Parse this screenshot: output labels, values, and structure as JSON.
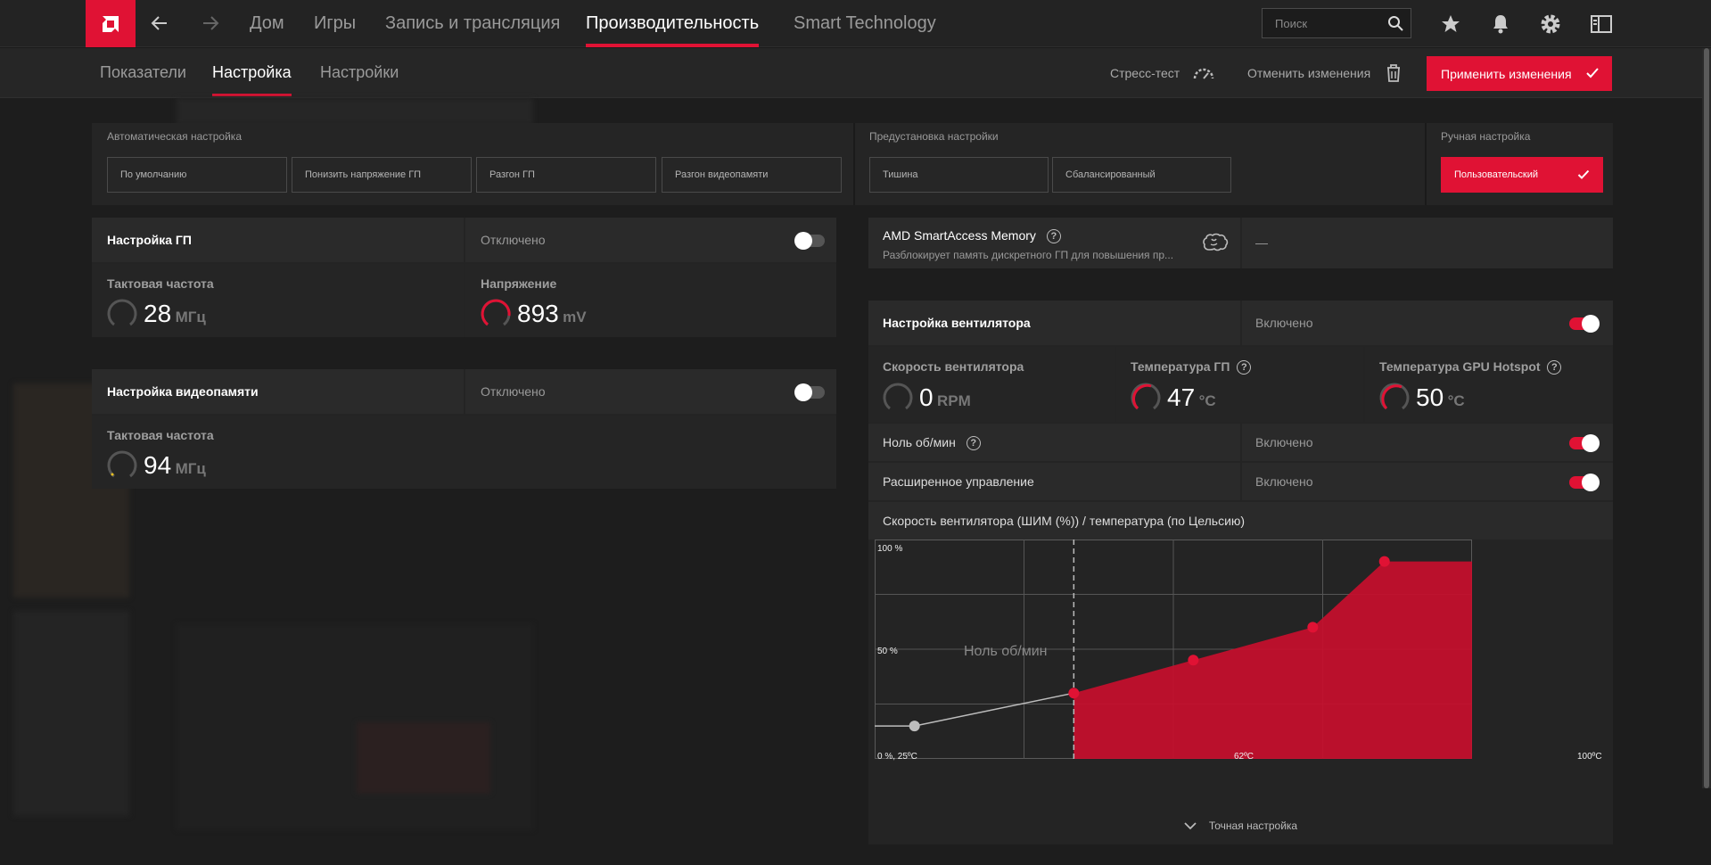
{
  "top_nav": {
    "items": [
      "Дом",
      "Игры",
      "Запись и трансляция",
      "Производительность",
      "Smart Technology"
    ],
    "active": "Производительность",
    "search_placeholder": "Поиск"
  },
  "sub_nav": {
    "tabs": [
      "Показатели",
      "Настройка",
      "Настройки"
    ],
    "active": "Настройка",
    "stress_test": "Стресс-тест",
    "cancel_changes": "Отменить изменения",
    "apply_changes": "Применить изменения"
  },
  "presets": {
    "auto_label": "Автоматическая настройка",
    "auto": [
      "По умолчанию",
      "Понизить напряжение ГП",
      "Разгон ГП",
      "Разгон видеопамяти"
    ],
    "preset_label": "Предустановка настройки",
    "preset": [
      "Тишина",
      "Сбалансированный"
    ],
    "manual_label": "Ручная настройка",
    "manual": "Пользовательский"
  },
  "gpu_tuning": {
    "title": "Настройка ГП",
    "state": "Отключено",
    "enabled": false,
    "clock_label": "Тактовая частота",
    "clock_value": "28",
    "clock_unit": "МГц",
    "voltage_label": "Напряжение",
    "voltage_value": "893",
    "voltage_unit": "mV"
  },
  "vram_tuning": {
    "title": "Настройка видеопамяти",
    "state": "Отключено",
    "enabled": false,
    "clock_label": "Тактовая частота",
    "clock_value": "94",
    "clock_unit": "МГц"
  },
  "sam": {
    "title": "AMD SmartAccess Memory",
    "description": "Разблокирует память дискретного ГП для повышения пр...",
    "value": "—"
  },
  "fan_tuning": {
    "title": "Настройка вентилятора",
    "state": "Включено",
    "enabled": true,
    "fan_speed_label": "Скорость вентилятора",
    "fan_speed_value": "0",
    "fan_speed_unit": "RPM",
    "gpu_temp_label": "Температура ГП",
    "gpu_temp_value": "47",
    "gpu_temp_unit": "°C",
    "hotspot_label": "Температура GPU Hotspot",
    "hotspot_value": "50",
    "hotspot_unit": "°C",
    "zero_rpm_label": "Ноль об/мин",
    "zero_rpm_state": "Включено",
    "advanced_label": "Расширенное управление",
    "advanced_state": "Включено",
    "curve_title": "Скорость вентилятора (ШИМ (%)) / температура (по Цельсию)",
    "fine_tune": "Точная настройка"
  },
  "colors": {
    "accent": "#e01234"
  },
  "chart_data": {
    "type": "area",
    "title": "Скорость вентилятора (ШИМ (%)) / температура (по Цельсию)",
    "ytick_labels": [
      "100 %",
      "50 %"
    ],
    "xtick_labels": [
      "62ºC",
      "100ºC"
    ],
    "origin_label": "0 %, 25ºC",
    "annotation": "Ноль об/мин",
    "xlim": [
      25,
      100
    ],
    "ylim": [
      0,
      100
    ],
    "zero_rpm_threshold": 50,
    "points": [
      {
        "x": 30,
        "y": 15
      },
      {
        "x": 50,
        "y": 30
      },
      {
        "x": 65,
        "y": 45
      },
      {
        "x": 80,
        "y": 60
      },
      {
        "x": 89,
        "y": 90
      }
    ]
  }
}
